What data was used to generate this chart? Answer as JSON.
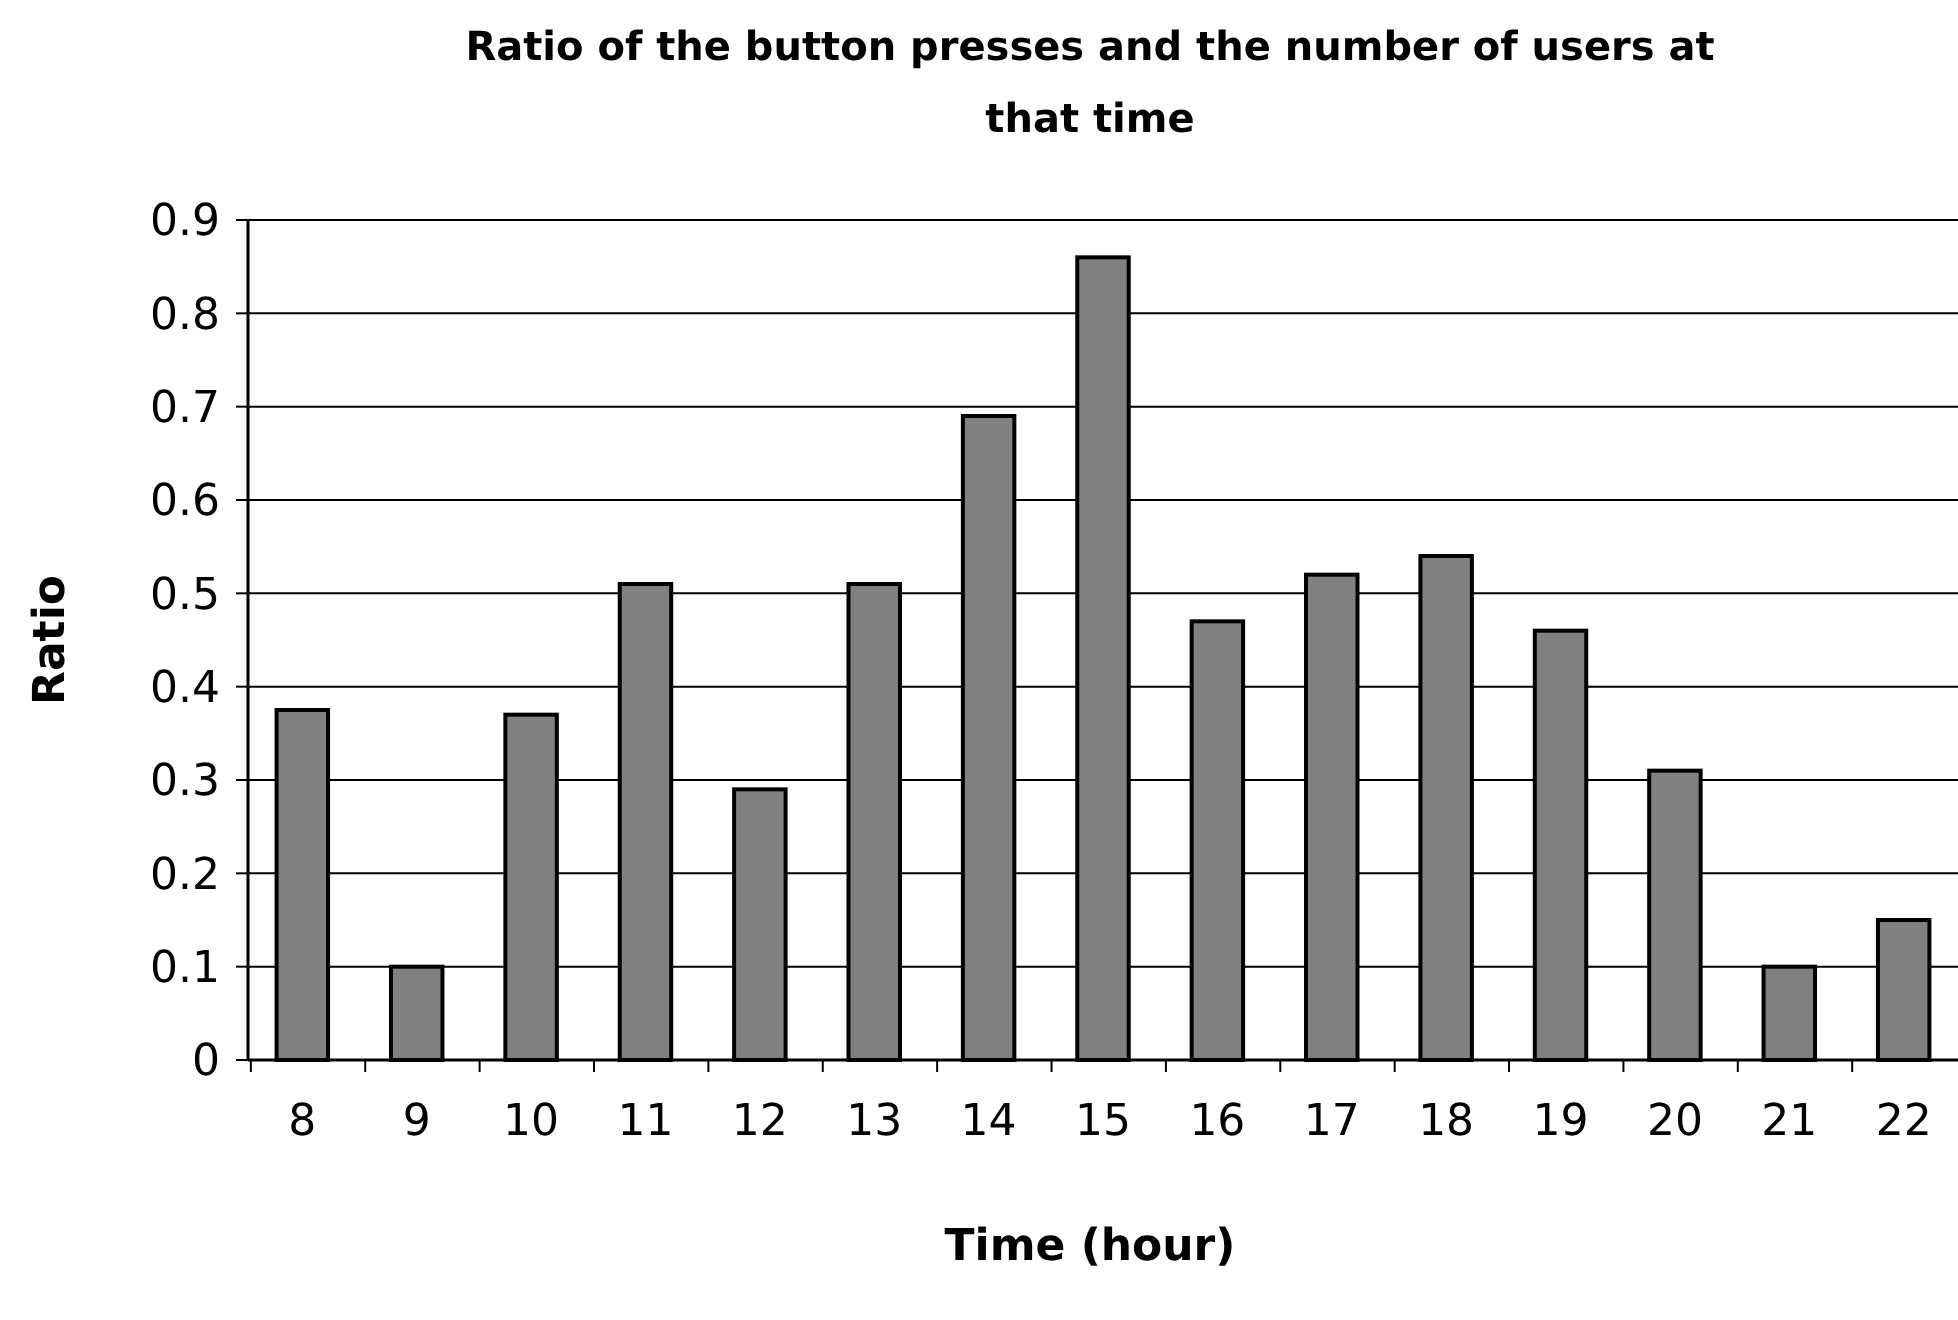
{
  "chart_data": {
    "type": "bar",
    "title": "Ratio of the button presses and the number of users at that time",
    "xlabel": "Time (hour)",
    "ylabel": "Ratio",
    "categories": [
      "8",
      "9",
      "10",
      "11",
      "12",
      "13",
      "14",
      "15",
      "16",
      "17",
      "18",
      "19",
      "20",
      "21",
      "22"
    ],
    "values": [
      0.375,
      0.1,
      0.37,
      0.51,
      0.29,
      0.51,
      0.69,
      0.86,
      0.47,
      0.52,
      0.54,
      0.46,
      0.31,
      0.1,
      0.15
    ],
    "color": "#808080",
    "ylim": [
      0,
      0.9
    ],
    "yticks": [
      0,
      0.1,
      0.2,
      0.3,
      0.4,
      0.5,
      0.6,
      0.7,
      0.8,
      0.9
    ],
    "grid": "y"
  }
}
